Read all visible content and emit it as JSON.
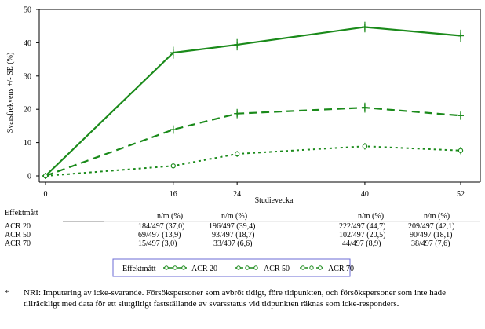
{
  "chart_data": {
    "type": "line",
    "title": "",
    "xlabel": "Studievecka",
    "ylabel": "Svarsfrekvens +/- SE (%)",
    "x": [
      0,
      16,
      24,
      40,
      52
    ],
    "xlim": [
      0,
      52
    ],
    "ylim": [
      0,
      50
    ],
    "xticks": [
      "0",
      "16",
      "24",
      "40",
      "52"
    ],
    "yticks": [
      "0",
      "10",
      "20",
      "30",
      "40",
      "50"
    ],
    "grid": false,
    "series": [
      {
        "name": "ACR 20",
        "values": [
          0,
          37.0,
          39.4,
          44.7,
          42.1
        ],
        "se": [
          0,
          1.8,
          1.7,
          1.6,
          1.8
        ],
        "color": "#1a8a1a"
      },
      {
        "name": "ACR 50",
        "values": [
          0,
          13.9,
          18.7,
          20.5,
          18.1
        ],
        "se": [
          0,
          1.3,
          1.4,
          1.5,
          1.3
        ],
        "color": "#1a8a1a"
      },
      {
        "name": "ACR 70",
        "values": [
          0,
          3.0,
          6.6,
          8.9,
          7.6
        ],
        "se": [
          0,
          0.7,
          0.9,
          1.0,
          1.1
        ],
        "color": "#1a8a1a"
      }
    ]
  },
  "table": {
    "header_label": "Effektmått",
    "col_header": "n/m (%)",
    "rows": [
      {
        "label": "ACR 20",
        "cells": [
          "184/497 (37,0)",
          "196/497 (39,4)",
          "222/497 (44,7)",
          "209/497 (42,1)"
        ]
      },
      {
        "label": "ACR 50",
        "cells": [
          "69/497 (13,9)",
          "93/497 (18,7)",
          "102/497 (20,5)",
          "90/497 (18,1)"
        ]
      },
      {
        "label": "ACR 70",
        "cells": [
          "15/497 (3,0)",
          "33/497 (6,6)",
          "44/497 (8,9)",
          "38/497 (7,6)"
        ]
      }
    ]
  },
  "legend": {
    "title": "Effektmått",
    "items": [
      "ACR 20",
      "ACR 50",
      "ACR 70"
    ]
  },
  "footnote": {
    "marker": "*",
    "text": "NRI: Imputering av icke-svarande. Försökspersoner som avbröt tidigt, före tidpunkten, och försökspersoner som inte hade tillräckligt med data för ett slutgiltigt fastställande av svarsstatus vid tidpunkten räknas som icke-responders."
  }
}
